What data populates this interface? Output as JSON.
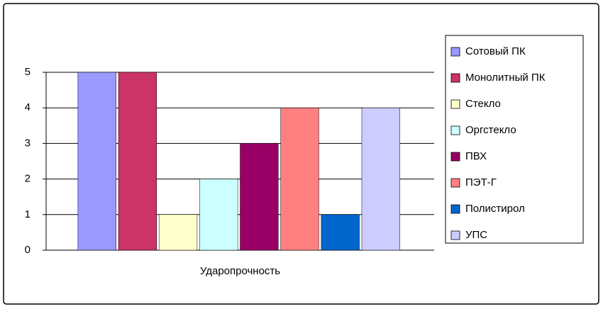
{
  "chart_data": {
    "type": "bar",
    "categories": [
      "Ударопрочность"
    ],
    "series": [
      {
        "name": "Сотовый ПК",
        "color": "#9999ff",
        "values": [
          5
        ]
      },
      {
        "name": "Монолитный ПК",
        "color": "#cc3366",
        "values": [
          5
        ]
      },
      {
        "name": "Стекло",
        "color": "#ffffcc",
        "values": [
          1
        ]
      },
      {
        "name": "Оргстекло",
        "color": "#ccffff",
        "values": [
          2
        ]
      },
      {
        "name": "ПВХ",
        "color": "#990066",
        "values": [
          3
        ]
      },
      {
        "name": "ПЭТ-Г",
        "color": "#ff8080",
        "values": [
          4
        ]
      },
      {
        "name": "Полистирол",
        "color": "#0066cc",
        "values": [
          1
        ]
      },
      {
        "name": "УПС",
        "color": "#ccccff",
        "values": [
          4
        ]
      }
    ],
    "ylim": [
      0,
      5
    ],
    "yticks": [
      0,
      1,
      2,
      3,
      4,
      5
    ],
    "grid": true,
    "legend": "right"
  }
}
